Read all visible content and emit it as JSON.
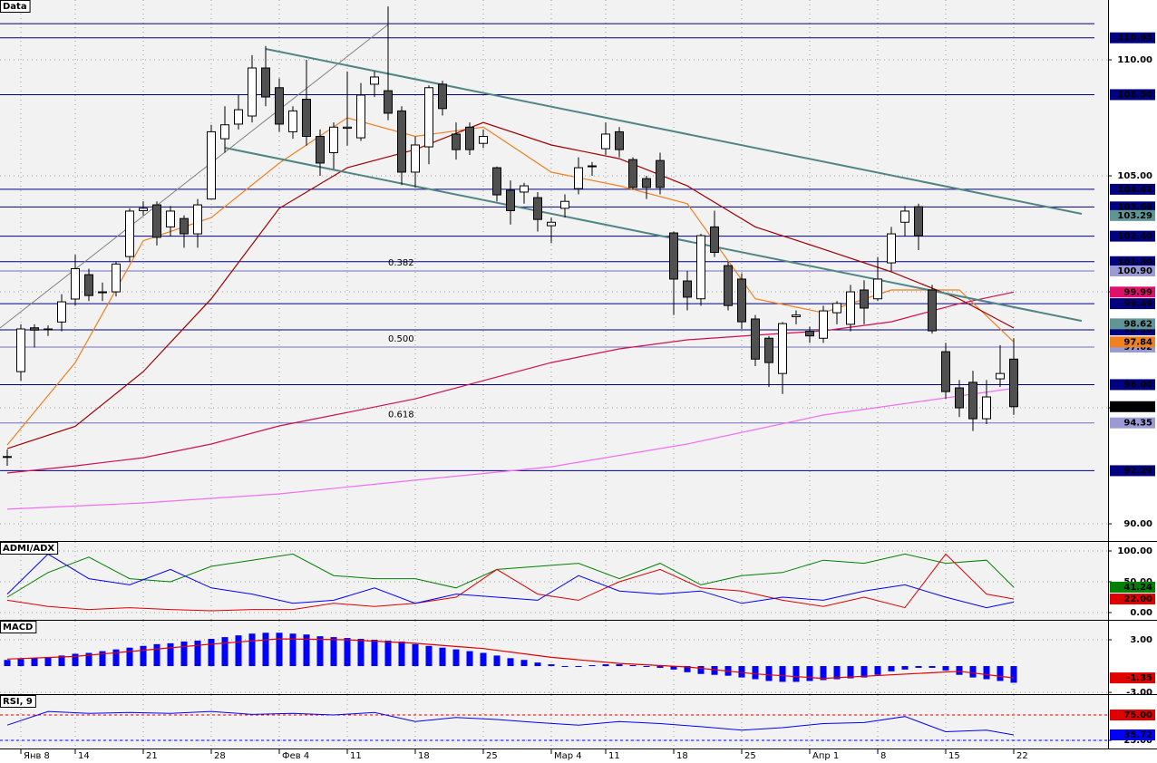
{
  "chart_data": [
    {
      "type": "candlestick",
      "title": "Data",
      "categories": [
        null,
        "Янв 8",
        null,
        null,
        null,
        "14",
        null,
        null,
        null,
        null,
        "21",
        null,
        null,
        null,
        null,
        "28",
        null,
        null,
        null,
        null,
        "Фев 4",
        null,
        null,
        null,
        null,
        "11",
        null,
        null,
        null,
        null,
        "18",
        null,
        null,
        null,
        null,
        "25",
        null,
        null,
        null,
        null,
        "Мар 4",
        null,
        null,
        null,
        "11",
        null,
        null,
        null,
        null,
        "18",
        null,
        null,
        null,
        null,
        "25",
        null,
        null,
        null,
        null,
        "Апр 1",
        null,
        null,
        null,
        null,
        "8",
        null,
        null,
        null,
        null,
        "15",
        null,
        null,
        null,
        null,
        "22"
      ],
      "open": [
        92.9,
        96.56,
        98.45,
        98.4,
        98.7,
        99.69,
        100.74,
        100.0,
        100.0,
        101.52,
        103.5,
        103.75,
        102.8,
        103.16,
        102.5,
        104.0,
        106.6,
        107.23,
        107.58,
        109.65,
        108.8,
        106.9,
        108.3,
        106.7,
        106.0,
        107.05,
        106.64,
        108.95,
        108.67,
        107.8,
        105.16,
        106.25,
        108.95,
        106.8,
        107.1,
        106.4,
        105.35,
        104.38,
        104.3,
        104.06,
        102.85,
        103.6,
        104.45,
        105.43,
        106.17,
        106.9,
        105.7,
        104.88,
        105.66,
        102.54,
        100.47,
        99.7,
        102.8,
        101.13,
        100.55,
        98.83,
        98.0,
        96.48,
        98.93,
        98.3,
        98.0,
        99.1,
        98.6,
        100.08,
        99.7,
        101.25,
        103.0,
        103.67,
        100.08,
        97.42,
        95.86,
        96.1,
        94.53,
        96.25,
        97.1
      ],
      "high": [
        93.2,
        98.6,
        98.6,
        98.55,
        99.9,
        101.6,
        101.0,
        100.4,
        101.3,
        103.6,
        103.9,
        103.9,
        103.7,
        103.3,
        104.0,
        107.2,
        108.0,
        108.5,
        110.2,
        110.6,
        109.2,
        108.0,
        110.0,
        107.0,
        107.3,
        109.5,
        109.0,
        109.5,
        112.3,
        108.0,
        106.7,
        108.9,
        109.1,
        107.3,
        107.3,
        107.0,
        105.4,
        104.8,
        104.7,
        104.3,
        103.2,
        104.2,
        105.8,
        105.6,
        107.3,
        107.1,
        105.8,
        105.0,
        106.0,
        102.6,
        100.9,
        102.5,
        103.5,
        101.3,
        100.8,
        99.0,
        98.1,
        98.7,
        99.2,
        98.5,
        99.4,
        99.6,
        100.3,
        100.5,
        101.5,
        102.8,
        103.7,
        103.8,
        100.3,
        97.8,
        96.2,
        96.6,
        96.2,
        97.7,
        98.0
      ],
      "low": [
        92.5,
        96.17,
        97.6,
        98.1,
        98.3,
        99.4,
        99.6,
        99.6,
        99.8,
        101.3,
        103.3,
        102.0,
        102.4,
        101.9,
        101.9,
        104.0,
        106.0,
        107.0,
        107.3,
        108.0,
        106.9,
        106.6,
        106.3,
        105.0,
        105.3,
        106.3,
        106.5,
        108.4,
        107.4,
        104.6,
        104.5,
        105.5,
        107.6,
        105.7,
        105.9,
        106.2,
        103.9,
        102.9,
        103.8,
        102.6,
        102.1,
        103.2,
        104.2,
        105.0,
        105.9,
        105.8,
        104.4,
        104.0,
        104.2,
        99.0,
        99.2,
        99.4,
        101.5,
        99.2,
        98.4,
        96.8,
        95.9,
        95.6,
        98.6,
        97.8,
        97.8,
        98.6,
        98.3,
        98.6,
        99.6,
        100.9,
        102.4,
        101.8,
        98.2,
        95.4,
        94.6,
        94.0,
        94.3,
        95.9,
        94.7
      ],
      "close": [
        92.9,
        98.4,
        98.35,
        98.4,
        99.57,
        101.0,
        99.84,
        100.0,
        101.2,
        103.48,
        103.6,
        102.35,
        103.48,
        102.5,
        103.75,
        106.9,
        107.2,
        107.85,
        109.65,
        108.4,
        107.23,
        107.8,
        106.7,
        105.55,
        107.1,
        107.1,
        108.48,
        109.26,
        107.7,
        105.16,
        106.33,
        108.8,
        107.9,
        106.13,
        106.13,
        106.7,
        104.18,
        103.5,
        104.57,
        103.12,
        103.0,
        103.9,
        105.35,
        105.43,
        106.8,
        106.13,
        104.5,
        104.5,
        104.5,
        100.55,
        99.77,
        102.42,
        101.7,
        99.41,
        98.71,
        97.1,
        96.95,
        98.63,
        99.0,
        98.1,
        99.18,
        99.5,
        100.0,
        99.3,
        100.55,
        102.5,
        103.48,
        102.42,
        98.32,
        95.7,
        95.0,
        94.53,
        95.47,
        96.48,
        95.05
      ],
      "up_color": "#ffffff",
      "down_color": "#505050",
      "ylim": [
        89.26,
        112.58
      ],
      "yticks": [
        {
          "value": 90,
          "label": "90.00"
        },
        {
          "value": 95,
          "label": "95.00"
        },
        {
          "value": 100,
          "label": "100.00"
        },
        {
          "value": 105,
          "label": "105.00"
        },
        {
          "value": 110,
          "label": "110.00"
        }
      ],
      "grid": true,
      "moving_averages": [
        {
          "color": "#f08020",
          "x": [
            0,
            5,
            10,
            15,
            20,
            25,
            30,
            35,
            40,
            45,
            50,
            55,
            60,
            65,
            70,
            74
          ],
          "values": [
            93.4,
            96.95,
            102.2,
            103.2,
            105.55,
            107.5,
            106.7,
            107.1,
            105.16,
            104.57,
            103.8,
            99.7,
            99.1,
            100.08,
            100.08,
            97.84
          ]
        },
        {
          "color": "#a00000",
          "x": [
            0,
            5,
            10,
            15,
            20,
            25,
            30,
            35,
            40,
            45,
            50,
            55,
            60,
            65,
            70,
            74
          ],
          "values": [
            93.24,
            94.2,
            96.56,
            99.7,
            103.6,
            105.35,
            106.13,
            107.3,
            106.33,
            105.74,
            104.57,
            102.8,
            101.84,
            100.86,
            99.69,
            98.44
          ]
        },
        {
          "color": "#d01050",
          "x": [
            0,
            5,
            10,
            15,
            20,
            25,
            30,
            35,
            40,
            45,
            50,
            55,
            60,
            65,
            70,
            74
          ],
          "values": [
            92.19,
            92.5,
            92.85,
            93.44,
            94.22,
            94.8,
            95.39,
            96.17,
            96.95,
            97.54,
            97.93,
            98.13,
            98.32,
            98.71,
            99.49,
            99.99
          ]
        },
        {
          "color": "#f070f0",
          "x": [
            0,
            10,
            20,
            30,
            40,
            50,
            60,
            70,
            74
          ],
          "values": [
            90.63,
            90.9,
            91.29,
            91.88,
            92.46,
            93.44,
            94.69,
            95.51,
            95.84
          ]
        }
      ],
      "trendlines": [
        {
          "color": "#4f8585",
          "x": [
            19,
            79
          ],
          "values": [
            110.47,
            103.36
          ]
        },
        {
          "color": "#4f8585",
          "x": [
            16,
            79
          ],
          "values": [
            106.21,
            98.75
          ]
        },
        {
          "color": "#808080",
          "x": [
            -0.53,
            28
          ],
          "values": [
            98.44,
            111.52
          ]
        }
      ],
      "levels": [
        {
          "value": 111.56
        },
        {
          "value": 110.95,
          "label": "110.95"
        },
        {
          "value": 108.5,
          "label": "108.50"
        },
        {
          "value": 104.42,
          "label": "104.42"
        },
        {
          "value": 103.66,
          "label": "103.66"
        },
        {
          "value": 102.4,
          "label": "102.40"
        },
        {
          "value": 101.3,
          "label": "101.30"
        },
        {
          "value": 99.49,
          "label": "99.49"
        },
        {
          "value": 98.36,
          "label": "98.36"
        },
        {
          "value": 96,
          "label": "96.00"
        },
        {
          "value": 92.29,
          "label": "92.29"
        }
      ],
      "level_color": "#000080",
      "fib_levels": [
        {
          "value": 100.9,
          "label": "100.90",
          "fib": "0.382"
        },
        {
          "value": 97.62,
          "label": "97.62",
          "fib": "0.500"
        },
        {
          "value": 94.35,
          "label": "94.35",
          "fib": "0.618"
        }
      ],
      "fib_color": "#7070c0",
      "tags": [
        {
          "value": 103.29,
          "label": "103.29",
          "color": "#5f9595"
        },
        {
          "value": 99.99,
          "label": "99.99",
          "color": "#e0106a"
        },
        {
          "value": 98.62,
          "label": "98.62",
          "color": "#5f9595"
        },
        {
          "value": 97.84,
          "label": "97.84",
          "color": "#f08020"
        },
        {
          "value": 95.05,
          "label": "95.05",
          "color": "#000000"
        }
      ]
    },
    {
      "type": "line",
      "title": "ADMI/ADX",
      "x": [
        0,
        3,
        6,
        9,
        12,
        15,
        18,
        21,
        24,
        27,
        30,
        33,
        36,
        39,
        42,
        45,
        48,
        51,
        54,
        57,
        60,
        63,
        66,
        69,
        72,
        74
      ],
      "series": [
        {
          "color": "#008000",
          "values": [
            25,
            65,
            90,
            55,
            50,
            75,
            85,
            95,
            60,
            55,
            55,
            40,
            70,
            75,
            80,
            55,
            80,
            45,
            60,
            65,
            85,
            80,
            95,
            80,
            85,
            41.24
          ]
        },
        {
          "color": "#e00000",
          "values": [
            20,
            10,
            5,
            8,
            5,
            3,
            5,
            5,
            15,
            10,
            15,
            25,
            70,
            30,
            20,
            50,
            70,
            40,
            35,
            20,
            10,
            25,
            8,
            95,
            30,
            22
          ]
        },
        {
          "color": "#0000ff",
          "values": [
            30,
            95,
            55,
            45,
            70,
            40,
            30,
            15,
            20,
            40,
            15,
            30,
            25,
            20,
            60,
            35,
            30,
            35,
            15,
            25,
            20,
            35,
            45,
            25,
            8,
            17
          ]
        }
      ],
      "ylim": [
        -11.76,
        114.7
      ],
      "yticks": [
        {
          "value": 100,
          "label": "100.00"
        },
        {
          "value": 50,
          "label": "50.00"
        },
        {
          "value": 0,
          "label": "0.00"
        }
      ],
      "tags": [
        {
          "value": 41.24,
          "label": "41.24",
          "color": "#008000"
        },
        {
          "value": 22,
          "label": "22.00",
          "color": "#e00000"
        }
      ]
    },
    {
      "type": "macd",
      "title": "MACD",
      "values": [
        0.7,
        0.8,
        0.9,
        1.0,
        1.2,
        1.4,
        1.5,
        1.7,
        1.9,
        2.1,
        2.3,
        2.5,
        2.6,
        2.8,
        2.9,
        3.1,
        3.3,
        3.5,
        3.7,
        3.8,
        3.8,
        3.7,
        3.6,
        3.4,
        3.3,
        3.2,
        3.1,
        3.0,
        2.9,
        2.8,
        2.5,
        2.3,
        2.1,
        1.9,
        1.7,
        1.5,
        1.2,
        0.9,
        0.7,
        0.4,
        0.2,
        0.0,
        -0.1,
        0.1,
        0.2,
        0.2,
        0.1,
        -0.1,
        -0.2,
        -0.4,
        -0.7,
        -0.9,
        -1.0,
        -1.1,
        -1.3,
        -1.5,
        -1.7,
        -1.8,
        -1.8,
        -1.7,
        -1.6,
        -1.5,
        -1.4,
        -1.3,
        -1.0,
        -0.6,
        -0.4,
        -0.2,
        -0.2,
        -0.5,
        -1.0,
        -1.3,
        -1.5,
        -1.7,
        -1.9
      ],
      "color": "#0000ff",
      "signal": {
        "color": "#e00000",
        "x": [
          0,
          5,
          10,
          15,
          20,
          25,
          30,
          35,
          40,
          45,
          50,
          55,
          60,
          65,
          70,
          74
        ],
        "values": [
          0.8,
          1.1,
          1.8,
          2.5,
          3.1,
          3.0,
          2.6,
          2.0,
          1.0,
          0.3,
          -0.1,
          -0.9,
          -1.4,
          -1.0,
          -0.6,
          -1.35
        ]
      },
      "ylim": [
        -3.2,
        5.17
      ],
      "yticks": [
        {
          "value": 3,
          "label": "3.00"
        },
        {
          "value": -3,
          "label": "-3.00"
        }
      ],
      "tags": [
        {
          "value": -1.35,
          "label": "-1.35",
          "color": "#e00000"
        }
      ]
    },
    {
      "type": "line",
      "title": "RSI, 9",
      "x": [
        0,
        3,
        6,
        9,
        12,
        15,
        18,
        21,
        24,
        27,
        30,
        33,
        36,
        39,
        42,
        45,
        48,
        51,
        54,
        57,
        60,
        63,
        66,
        69,
        72,
        74
      ],
      "series": [
        {
          "color": "#0000ff",
          "values": [
            55,
            82,
            78,
            80,
            78,
            82,
            76,
            78,
            75,
            80,
            62,
            70,
            66,
            60,
            55,
            62,
            58,
            52,
            45,
            50,
            58,
            60,
            72,
            42,
            45,
            35.72
          ]
        }
      ],
      "ylim": [
        8.93,
        114.3
      ],
      "yticks": [
        {
          "value": 25,
          "label": "25.00"
        }
      ],
      "levels": [
        {
          "value": 75,
          "color": "#e00000"
        },
        {
          "value": 25,
          "color": "#0000ff"
        }
      ],
      "tags": [
        {
          "value": 75,
          "label": "75.00",
          "color": "#e00000"
        },
        {
          "value": 35.72,
          "label": "35.72",
          "color": "#0000ff"
        }
      ]
    }
  ]
}
